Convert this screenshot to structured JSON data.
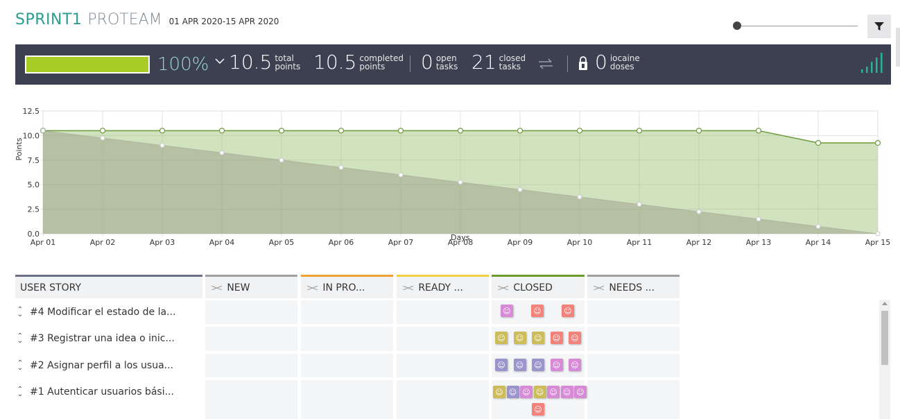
{
  "header": {
    "sprint": "SPRINT1",
    "project": "PROTEAM",
    "dates": "01 APR 2020-15 APR 2020"
  },
  "stats": {
    "progress_percent": "100%",
    "progress_fraction": 1.0,
    "total_points": "10.5",
    "total_label_1": "total",
    "total_label_2": "points",
    "completed_points": "10.5",
    "completed_label_1": "completed",
    "completed_label_2": "points",
    "open_tasks": "0",
    "open_label_1": "open",
    "open_label_2": "tasks",
    "closed_tasks": "21",
    "closed_label_1": "closed",
    "closed_label_2": "tasks",
    "iocaine": "0",
    "iocaine_label_1": "iocaine",
    "iocaine_label_2": "doses"
  },
  "chart_data": {
    "type": "area",
    "xlabel": "Days",
    "ylabel": "Points",
    "ylim": [
      0,
      12.5
    ],
    "yticks": [
      "0.0",
      "2.5",
      "5.0",
      "7.5",
      "10.0",
      "12.5"
    ],
    "categories": [
      "Apr 01",
      "Apr 02",
      "Apr 03",
      "Apr 04",
      "Apr 05",
      "Apr 06",
      "Apr 07",
      "Apr 08",
      "Apr 09",
      "Apr 10",
      "Apr 11",
      "Apr 12",
      "Apr 13",
      "Apr 14",
      "Apr 15"
    ],
    "series": [
      {
        "values": [
          10.5,
          10.5,
          10.5,
          10.5,
          10.5,
          10.5,
          10.5,
          10.5,
          10.5,
          10.5,
          10.5,
          10.5,
          10.5,
          9.25,
          9.25
        ],
        "color": "#6a9a3a"
      },
      {
        "values": [
          10.5,
          9.75,
          9.0,
          8.25,
          7.5,
          6.75,
          6.0,
          5.25,
          4.5,
          3.75,
          3.0,
          2.25,
          1.5,
          0.75,
          0.0
        ],
        "color": "#b0b0a0"
      }
    ],
    "grid": true
  },
  "board": {
    "columns": [
      {
        "label": "USER STORY"
      },
      {
        "label": "NEW",
        "color": "#a0a0a0"
      },
      {
        "label": "IN PRO...",
        "color": "#f0a030"
      },
      {
        "label": "READY ...",
        "color": "#f0d040"
      },
      {
        "label": "CLOSED",
        "color": "#6a9a2a"
      },
      {
        "label": "NEEDS ...",
        "color": "#a0a0a0"
      }
    ],
    "rows": [
      {
        "title": "#4 Modificar el estado de la...",
        "cards": [
          "pink",
          "salmon",
          "salmon"
        ]
      },
      {
        "title": "#3 Registrar una idea o inic...",
        "cards": [
          "yellow",
          "yellow",
          "yellow",
          "salmon",
          "salmon"
        ]
      },
      {
        "title": "#2 Asignar perfil a los usua...",
        "cards": [
          "purple",
          "purple",
          "purple",
          "pink",
          "pink"
        ]
      },
      {
        "title": "#1 Autenticar usuarios bási...",
        "cards": [
          "yellow",
          "purple",
          "pink",
          "yellow",
          "pink",
          "pink",
          "pink",
          "salmon"
        ]
      }
    ],
    "card_colors": {
      "pink": "#d78ad6",
      "salmon": "#f2827a",
      "yellow": "#cdbd5a",
      "purple": "#9c95cc"
    }
  }
}
